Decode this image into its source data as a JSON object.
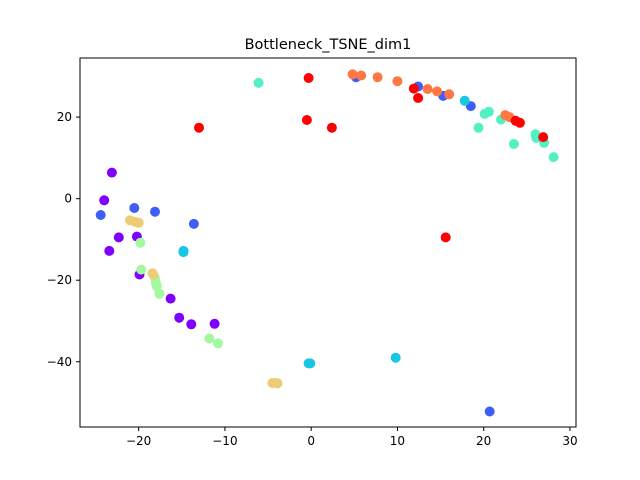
{
  "chart_data": {
    "type": "scatter",
    "title": "Bottleneck_TSNE_dim1",
    "xlabel": "",
    "ylabel": "",
    "xlim": [
      -26.8,
      30.7
    ],
    "ylim": [
      -56,
      34.5
    ],
    "xticks": [
      -20,
      -10,
      0,
      10,
      20,
      30
    ],
    "yticks": [
      -40,
      -20,
      0,
      20
    ],
    "xtick_labels": [
      "−20",
      "−10",
      "0",
      "10",
      "20",
      "30"
    ],
    "ytick_labels": [
      "−40",
      "−20",
      "0",
      "20"
    ],
    "grid": false,
    "legend": false,
    "groups": [
      {
        "color": "#8000ff",
        "points": [
          [
            -23.1,
            6.4
          ],
          [
            -24.0,
            -0.4
          ],
          [
            -22.3,
            -9.5
          ],
          [
            -20.2,
            -9.3
          ],
          [
            -23.4,
            -12.8
          ],
          [
            -19.9,
            -18.6
          ],
          [
            -16.3,
            -24.5
          ],
          [
            -15.3,
            -29.2
          ],
          [
            -13.9,
            -30.8
          ],
          [
            -11.2,
            -30.7
          ]
        ]
      },
      {
        "color": "#3e5ef7",
        "points": [
          [
            -24.4,
            -4.0
          ],
          [
            -20.5,
            -2.3
          ],
          [
            -18.1,
            -3.2
          ],
          [
            -13.6,
            -6.2
          ],
          [
            5.2,
            29.8
          ],
          [
            12.4,
            27.5
          ],
          [
            15.3,
            25.2
          ],
          [
            18.5,
            22.7
          ],
          [
            20.7,
            -52.2
          ]
        ]
      },
      {
        "color": "#18c7e3",
        "points": [
          [
            -14.8,
            -12.8
          ],
          [
            -14.8,
            -13.1
          ],
          [
            -0.3,
            -40.4
          ],
          [
            -0.1,
            -40.4
          ],
          [
            9.8,
            -39.0
          ],
          [
            17.8,
            24.0
          ]
        ]
      },
      {
        "color": "#53f0c3",
        "points": [
          [
            -6.1,
            28.4
          ],
          [
            19.4,
            17.4
          ],
          [
            20.1,
            20.8
          ],
          [
            20.6,
            21.3
          ],
          [
            22.0,
            19.4
          ],
          [
            23.5,
            13.4
          ],
          [
            26.0,
            15.8
          ],
          [
            26.1,
            14.9
          ],
          [
            27.0,
            13.7
          ],
          [
            28.1,
            10.2
          ]
        ]
      },
      {
        "color": "#a4f89e",
        "points": [
          [
            -19.8,
            -10.8
          ],
          [
            -19.7,
            -17.4
          ],
          [
            -18.1,
            -19.5
          ],
          [
            -18.0,
            -20.6
          ],
          [
            -17.9,
            -21.5
          ],
          [
            -17.6,
            -23.3
          ],
          [
            -11.8,
            -34.3
          ],
          [
            -10.8,
            -35.5
          ]
        ]
      },
      {
        "color": "#eecc75",
        "points": [
          [
            -21.0,
            -5.3
          ],
          [
            -20.4,
            -5.7
          ],
          [
            -20.0,
            -5.9
          ],
          [
            -18.4,
            -18.3
          ],
          [
            -18.3,
            -18.6
          ],
          [
            -4.5,
            -45.2
          ],
          [
            -4.1,
            -45.2
          ],
          [
            -3.9,
            -45.3
          ]
        ]
      },
      {
        "color": "#ff7744",
        "points": [
          [
            4.8,
            30.5
          ],
          [
            5.8,
            30.2
          ],
          [
            7.7,
            29.8
          ],
          [
            10.0,
            28.8
          ],
          [
            13.5,
            26.9
          ],
          [
            14.6,
            26.3
          ],
          [
            16.0,
            25.6
          ],
          [
            22.5,
            20.5
          ],
          [
            23.0,
            20.0
          ]
        ]
      },
      {
        "color": "#ff0000",
        "points": [
          [
            -13.0,
            17.4
          ],
          [
            -0.3,
            29.6
          ],
          [
            -0.5,
            19.3
          ],
          [
            2.4,
            17.4
          ],
          [
            11.9,
            27.0
          ],
          [
            12.4,
            24.7
          ],
          [
            15.6,
            -9.5
          ],
          [
            23.7,
            19.1
          ],
          [
            24.2,
            18.6
          ],
          [
            26.9,
            15.1
          ]
        ]
      }
    ]
  }
}
